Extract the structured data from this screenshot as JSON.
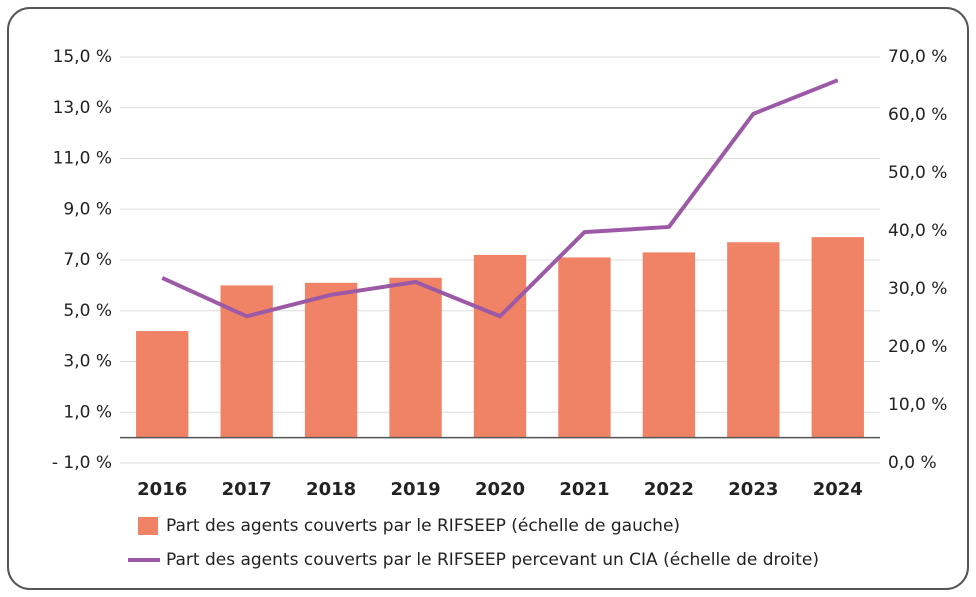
{
  "chart_data": {
    "type": "bar",
    "categories": [
      "2016",
      "2017",
      "2018",
      "2019",
      "2020",
      "2021",
      "2022",
      "2023",
      "2024"
    ],
    "series": [
      {
        "name": "Part des agents couverts par le RIFSEEP (échelle de gauche)",
        "type": "bar",
        "color": "#f08366",
        "values": [
          4.2,
          6.0,
          6.1,
          6.3,
          7.2,
          7.1,
          7.3,
          7.7,
          7.9
        ]
      },
      {
        "name": "Part des agents couverts par le RIFSEEP percevant un CIA (échelle de droite)",
        "type": "line",
        "axis": "y2",
        "color": "#9b59a6",
        "values": [
          31.9,
          25.3,
          29.0,
          31.2,
          25.3,
          39.8,
          40.7,
          60.2,
          66.0
        ]
      }
    ],
    "ylim": [
      -1,
      15
    ],
    "yticks": [
      {
        "value": -1,
        "label": "- 1,0 %"
      },
      {
        "value": 1,
        "label": "1,0 %"
      },
      {
        "value": 3,
        "label": "3,0 %"
      },
      {
        "value": 5,
        "label": "5,0 %"
      },
      {
        "value": 7,
        "label": "7,0 %"
      },
      {
        "value": 9,
        "label": "9,0 %"
      },
      {
        "value": 11,
        "label": "11,0 %"
      },
      {
        "value": 13,
        "label": "13,0 %"
      },
      {
        "value": 15,
        "label": "15,0 %"
      }
    ],
    "y2lim": [
      0,
      70
    ],
    "y2ticks": [
      {
        "value": 0,
        "label": "0,0 %"
      },
      {
        "value": 10,
        "label": "10,0 %"
      },
      {
        "value": 20,
        "label": "20,0 %"
      },
      {
        "value": 30,
        "label": "30,0 %"
      },
      {
        "value": 40,
        "label": "40,0 %"
      },
      {
        "value": 50,
        "label": "50,0 %"
      },
      {
        "value": 60,
        "label": "60,0 %"
      },
      {
        "value": 70,
        "label": "70,0 %"
      }
    ],
    "grid": true
  }
}
